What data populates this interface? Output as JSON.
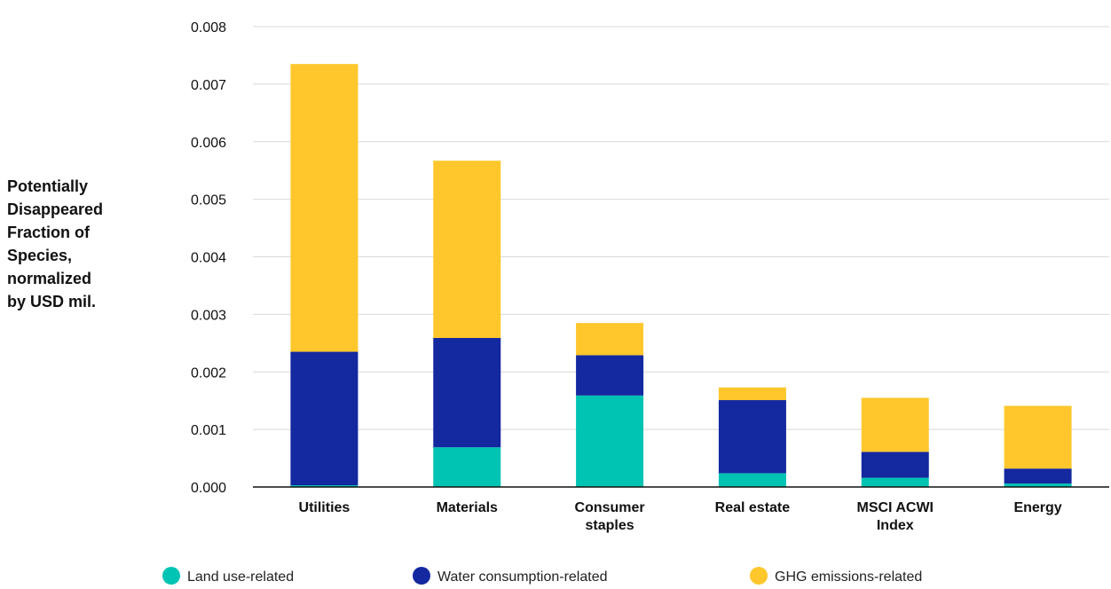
{
  "chart_data": {
    "type": "bar",
    "stacked": true,
    "categories": [
      "Utilities",
      "Materials",
      "Consumer staples",
      "Real estate",
      "MSCI ACWI Index",
      "Energy"
    ],
    "category_lines": [
      [
        "Utilities"
      ],
      [
        "Materials"
      ],
      [
        "Consumer",
        "staples"
      ],
      [
        "Real estate"
      ],
      [
        "MSCI ACWI",
        "Index"
      ],
      [
        "Energy"
      ]
    ],
    "series": [
      {
        "name": "Land use-related",
        "color": "#00c4b3",
        "values": [
          3e-05,
          0.00069,
          0.00159,
          0.00024,
          0.00016,
          6e-05
        ]
      },
      {
        "name": "Water consumption-related",
        "color": "#1428a0",
        "values": [
          0.00232,
          0.0019,
          0.0007,
          0.00127,
          0.00045,
          0.00026
        ]
      },
      {
        "name": "GHG emissions-related",
        "color": "#ffc72c",
        "values": [
          0.005,
          0.00308,
          0.00056,
          0.00022,
          0.00094,
          0.00109
        ]
      }
    ],
    "ylabel_lines": [
      "Potentially",
      "Disappeared",
      "Fraction of",
      "Species,",
      "normalized",
      "by USD mil."
    ],
    "ylim": [
      0,
      0.008
    ],
    "yticks": [
      "0.000",
      "0.001",
      "0.002",
      "0.003",
      "0.004",
      "0.005",
      "0.006",
      "0.007",
      "0.008"
    ],
    "grid": true,
    "legend_position": "bottom"
  }
}
